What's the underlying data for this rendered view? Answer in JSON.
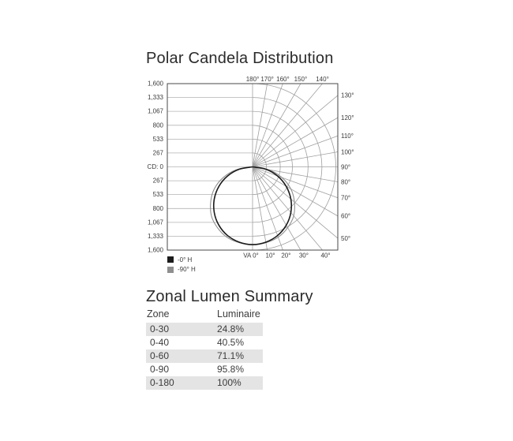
{
  "chart_data": {
    "type": "polar",
    "title": "Polar Candela Distribution",
    "radial_axis": {
      "unit": "candela",
      "max": 1600,
      "center_label": "CD: 0",
      "ticks": [
        {
          "value": 267,
          "label": "267"
        },
        {
          "value": 533,
          "label": "533"
        },
        {
          "value": 800,
          "label": "800"
        },
        {
          "value": 1067,
          "label": "1,067"
        },
        {
          "value": 1333,
          "label": "1,333"
        },
        {
          "value": 1600,
          "label": "1,600"
        }
      ]
    },
    "angular_axis": {
      "top": [
        {
          "angle": 180,
          "label": "180°"
        },
        {
          "angle": 170,
          "label": "170°"
        },
        {
          "angle": 160,
          "label": "160°"
        },
        {
          "angle": 150,
          "label": "150°"
        },
        {
          "angle": 140,
          "label": "140°"
        }
      ],
      "right": [
        {
          "angle": 130,
          "label": "130°"
        },
        {
          "angle": 120,
          "label": "120°"
        },
        {
          "angle": 110,
          "label": "110°"
        },
        {
          "angle": 100,
          "label": "100°"
        },
        {
          "angle": 90,
          "label": "90°"
        },
        {
          "angle": 80,
          "label": "80°"
        },
        {
          "angle": 70,
          "label": "70°"
        },
        {
          "angle": 60,
          "label": "60°"
        },
        {
          "angle": 50,
          "label": "50°"
        }
      ],
      "bottom": [
        {
          "angle": 0,
          "label": "VA 0°"
        },
        {
          "angle": 10,
          "label": "10°"
        },
        {
          "angle": 20,
          "label": "20°"
        },
        {
          "angle": 30,
          "label": "30°"
        },
        {
          "angle": 40,
          "label": "40°"
        }
      ]
    },
    "series": [
      {
        "name": "-0° H",
        "color": "#1b1b1b",
        "stroke_width": 1.6,
        "angles_deg": [
          0,
          10,
          20,
          30,
          40,
          50,
          60,
          70,
          80,
          90
        ],
        "candela": [
          1495,
          1470,
          1405,
          1295,
          1145,
          960,
          745,
          510,
          260,
          0
        ]
      },
      {
        "name": "-90° H",
        "color": "#8f8f8f",
        "stroke_width": 1.1,
        "angles_deg": [
          0,
          10,
          20,
          30,
          40,
          50,
          60,
          70,
          80,
          90
        ],
        "candela": [
          1490,
          1480,
          1440,
          1350,
          1230,
          1050,
          850,
          600,
          315,
          0
        ]
      }
    ],
    "grid": {
      "h_line_color": "#b3b3b3",
      "polar_line_color": "#a0a0a0",
      "border_color": "#4a4a4a",
      "label_color": "#3a3a3a"
    },
    "legend_position": "bottom-left"
  },
  "legend": {
    "entries": [
      {
        "label": "-0° H",
        "swatch": "#1b1b1b"
      },
      {
        "label": "-90° H",
        "swatch": "#8f8f8f"
      }
    ]
  },
  "zonal_table": {
    "title": "Zonal Lumen Summary",
    "columns": [
      "Zone",
      "Luminaire"
    ],
    "rows": [
      {
        "zone": "0-30",
        "luminaire": "24.8%"
      },
      {
        "zone": "0-40",
        "luminaire": "40.5%"
      },
      {
        "zone": "0-60",
        "luminaire": "71.1%"
      },
      {
        "zone": "0-90",
        "luminaire": "95.8%"
      },
      {
        "zone": "0-180",
        "luminaire": "100%"
      }
    ],
    "row_shade": "#e4e4e4"
  }
}
